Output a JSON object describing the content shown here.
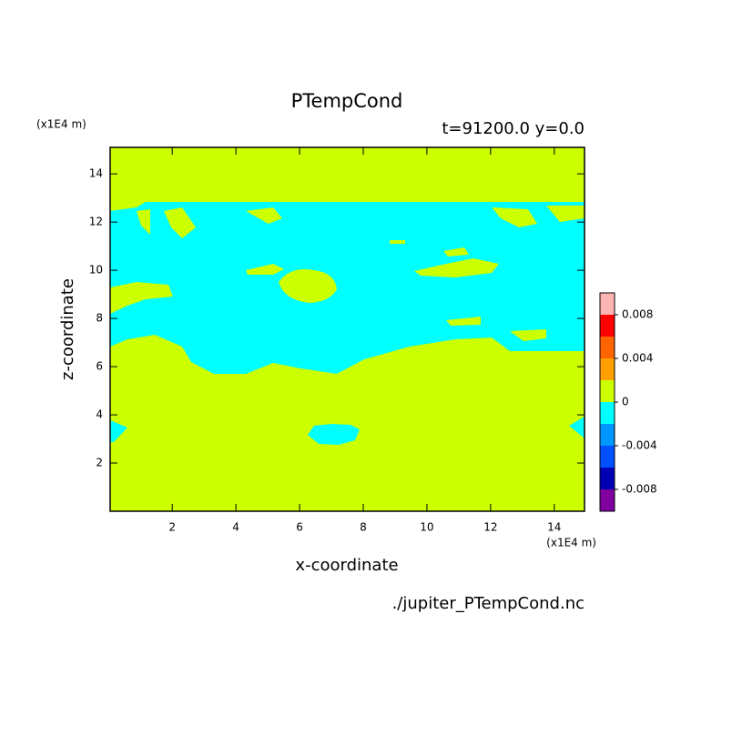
{
  "chart_data": {
    "type": "contour",
    "title": "PTempCond",
    "subtitle": "t=91200.0 y=0.0",
    "x_label": "x-coordinate",
    "y_label": "z-coordinate",
    "x_unit": "(x1E4 m)",
    "y_unit": "(x1E4 m)",
    "footer": "./jupiter_PTempCond.nc",
    "xlim": [
      0.05,
      14.95
    ],
    "ylim": [
      0,
      15.1
    ],
    "xticks": [
      2,
      4,
      6,
      8,
      10,
      12,
      14
    ],
    "yticks": [
      2,
      4,
      6,
      8,
      10,
      12,
      14
    ],
    "levels": [
      -0.01,
      -0.008,
      -0.006,
      -0.004,
      -0.002,
      0,
      0.002,
      0.004,
      0.006,
      0.008,
      0.01
    ],
    "colors": [
      "#8000a0",
      "#0000b4",
      "#0050ff",
      "#0096ff",
      "#00ffff",
      "#ccff00",
      "#ffa000",
      "#ff6400",
      "#ff0000",
      "#ffb4b4"
    ],
    "colorbar_lim": [
      -0.01,
      0.01
    ],
    "colorbar_ticks": [
      0.008,
      0.004,
      0,
      -0.004,
      -0.008
    ]
  }
}
